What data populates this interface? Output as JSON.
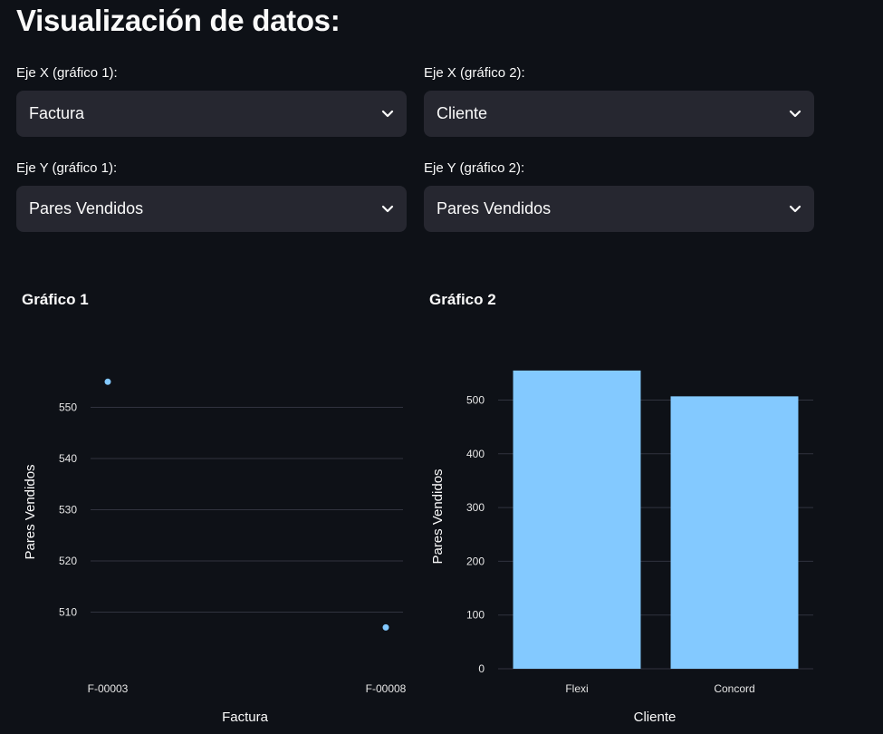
{
  "page": {
    "title": "Visualización de datos:"
  },
  "controls": {
    "x1": {
      "label": "Eje X (gráfico 1):",
      "value": "Factura"
    },
    "x2": {
      "label": "Eje X (gráfico 2):",
      "value": "Cliente"
    },
    "y1": {
      "label": "Eje Y (gráfico 1):",
      "value": "Pares Vendidos"
    },
    "y2": {
      "label": "Eje Y (gráfico 2):",
      "value": "Pares Vendidos"
    }
  },
  "colors": {
    "accent": "#83c9ff",
    "grid": "#31333f",
    "text": "#fafafa",
    "tick": "#e6e6e6"
  },
  "chart_data": [
    {
      "type": "scatter",
      "title": "Gráfico 1",
      "xlabel": "Factura",
      "ylabel": "Pares Vendidos",
      "categories": [
        "F-00003",
        "F-00008"
      ],
      "values": [
        555,
        507
      ],
      "ylim": [
        503,
        557
      ],
      "yticks": [
        510,
        520,
        530,
        540,
        550
      ],
      "grid": true
    },
    {
      "type": "bar",
      "title": "Gráfico 2",
      "xlabel": "Cliente",
      "ylabel": "Pares Vendidos",
      "categories": [
        "Flexi",
        "Concord"
      ],
      "values": [
        555,
        507
      ],
      "ylim": [
        0,
        570
      ],
      "yticks": [
        0,
        100,
        200,
        300,
        400,
        500
      ],
      "grid": true
    }
  ]
}
